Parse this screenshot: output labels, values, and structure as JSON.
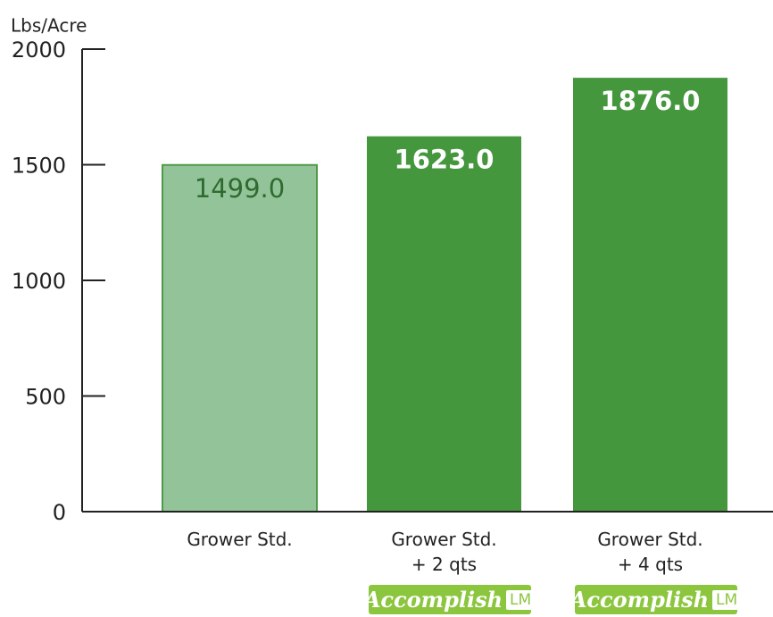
{
  "chart_data": {
    "type": "bar",
    "y_label": "Lbs/Acre",
    "categories": [
      "Grower Std.",
      "Grower Std.\n+ 2 qts",
      "Grower Std.\n+ 4 qts"
    ],
    "values": [
      1499,
      1623,
      1876
    ],
    "value_labels": [
      "1499.0",
      "1623.0",
      "1876.0"
    ],
    "colors": [
      "#93c499",
      "#45973e",
      "#45973e"
    ],
    "label_colors": [
      "#2f6b30",
      "#ffffff",
      "#ffffff"
    ],
    "badges": [
      null,
      "Accomplish",
      "Accomplish"
    ],
    "badge_suffixes": [
      null,
      "LM",
      "LM"
    ],
    "ylim": [
      0,
      2000
    ],
    "yticks": [
      0,
      500,
      1000,
      1500,
      2000
    ]
  }
}
